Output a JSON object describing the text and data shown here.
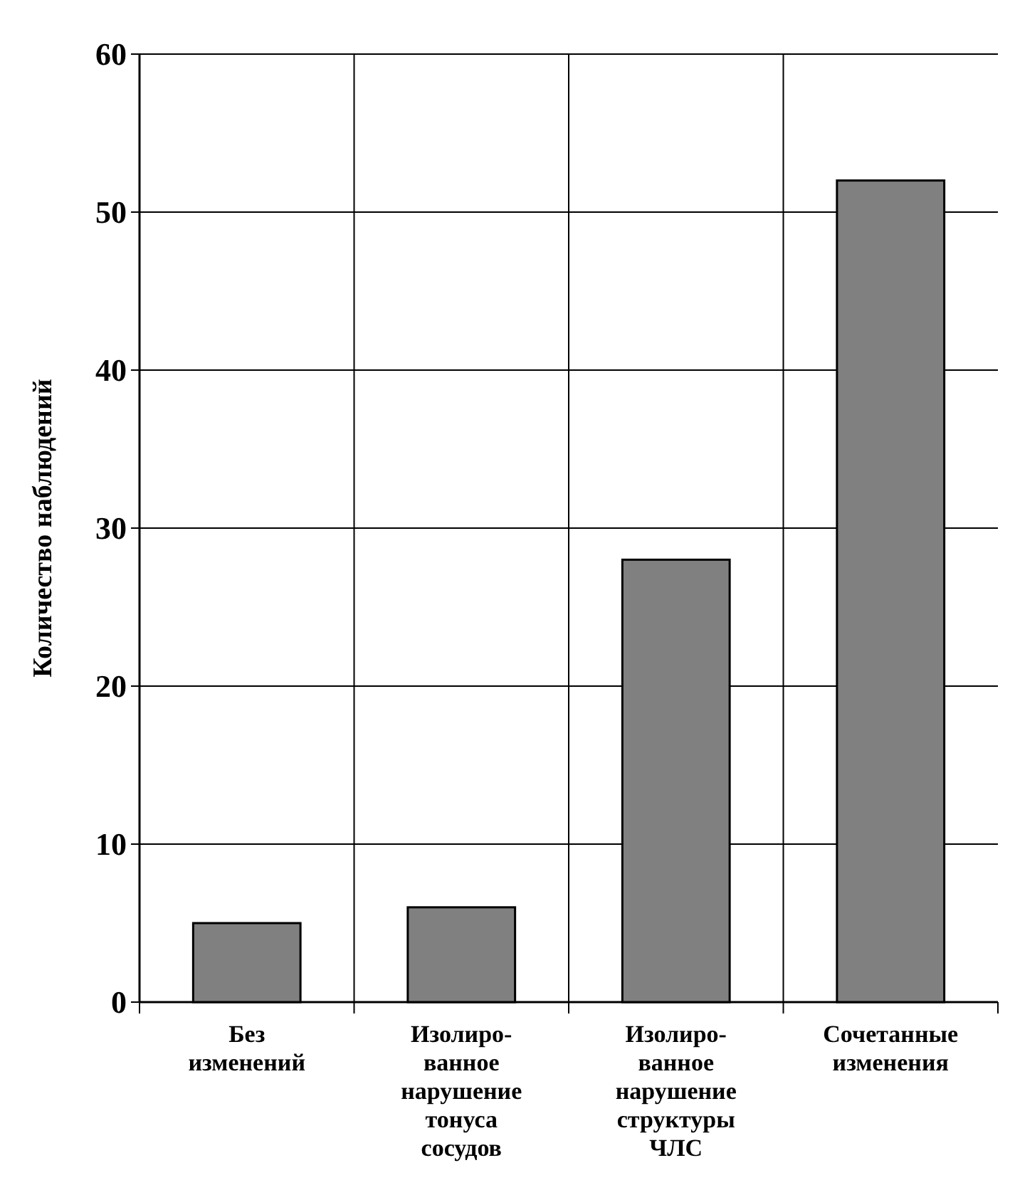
{
  "chart_data": {
    "type": "bar",
    "ylabel": "Количество наблюдений",
    "categories": [
      "Без\nизменений",
      "Изолиро-\nванное\nнарушение\nтонуса\nсосудов",
      "Изолиро-\nванное\nнарушение\nструктуры\nЧЛС",
      "Сочетанные\nизменения"
    ],
    "values": [
      5,
      6,
      28,
      52
    ],
    "color": "#808080",
    "ylim": [
      0,
      60
    ],
    "yticks": [
      0,
      10,
      20,
      30,
      40,
      50,
      60
    ],
    "grid": true
  }
}
